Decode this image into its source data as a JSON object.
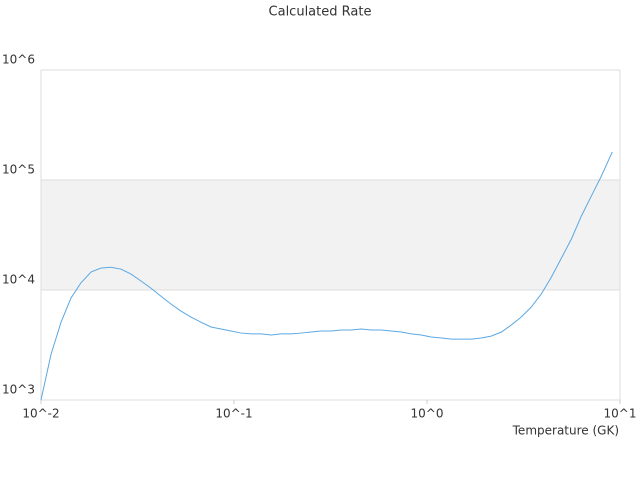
{
  "chart_data": {
    "type": "line",
    "title": "Calculated Rate",
    "x_label": "Temperature (GK)",
    "xscale": "log",
    "yscale": "log",
    "grid": true,
    "band_color": "#f2f2f2",
    "xlim": [
      0.01,
      10
    ],
    "ylim": [
      1000,
      1000000
    ],
    "xticks": [
      {
        "value": 0.01,
        "label": "10^-2"
      },
      {
        "value": 0.1,
        "label": "10^-1"
      },
      {
        "value": 1,
        "label": "10^0"
      },
      {
        "value": 10,
        "label": "10^1"
      }
    ],
    "yticks": [
      {
        "value": 1000,
        "label": "10^3"
      },
      {
        "value": 10000,
        "label": "10^4"
      },
      {
        "value": 100000,
        "label": "10^5"
      },
      {
        "value": 1000000,
        "label": "10^6"
      }
    ],
    "series": [
      {
        "color": "#5ba8e3",
        "x": [
          0.01,
          0.01127,
          0.0127,
          0.0143,
          0.0161,
          0.0182,
          0.0204,
          0.023,
          0.0259,
          0.0292,
          0.0329,
          0.0371,
          0.0418,
          0.0471,
          0.0531,
          0.0598,
          0.0674,
          0.076,
          0.0856,
          0.0965,
          0.109,
          0.123,
          0.138,
          0.156,
          0.175,
          0.198,
          0.223,
          0.251,
          0.283,
          0.319,
          0.359,
          0.405,
          0.456,
          0.514,
          0.579,
          0.653,
          0.736,
          0.829,
          0.934,
          1.05,
          1.19,
          1.34,
          1.51,
          1.7,
          1.91,
          2.15,
          2.43,
          2.73,
          3.08,
          3.47,
          3.91,
          4.41,
          4.97,
          5.6,
          6.31,
          7.11,
          8.01,
          9.12
        ],
        "values": [
          1000,
          2600,
          5100,
          8450,
          11600,
          14600,
          15800,
          16100,
          15500,
          14000,
          12100,
          10400,
          8800,
          7460,
          6440,
          5680,
          5100,
          4610,
          4420,
          4240,
          4060,
          3990,
          3990,
          3900,
          3990,
          3990,
          4060,
          4150,
          4240,
          4240,
          4330,
          4330,
          4420,
          4330,
          4330,
          4240,
          4150,
          3990,
          3900,
          3740,
          3660,
          3580,
          3580,
          3580,
          3660,
          3810,
          4150,
          4800,
          5680,
          7000,
          9200,
          13100,
          19500,
          29100,
          47100,
          71600,
          108700,
          180000
        ]
      }
    ]
  }
}
